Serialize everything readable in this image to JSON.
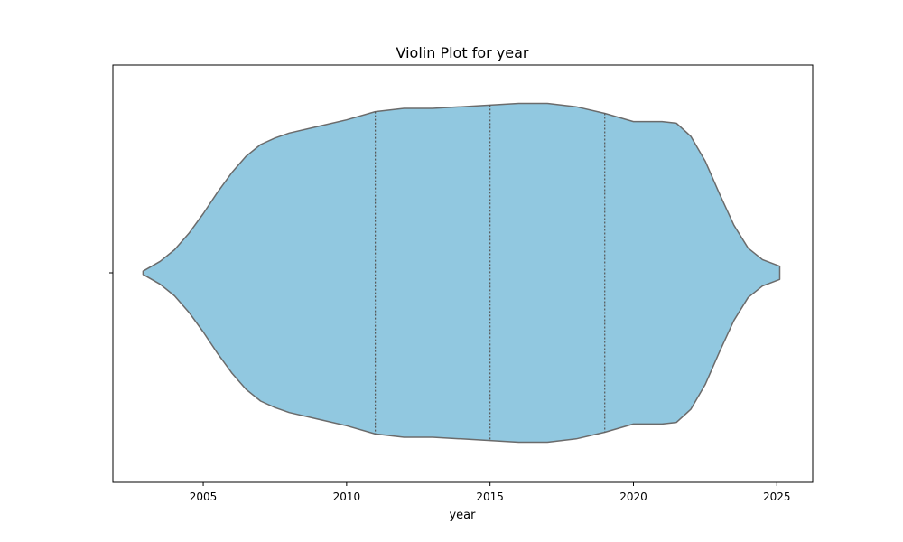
{
  "chart_data": {
    "type": "violin",
    "title": "Violin Plot for year",
    "xlabel": "year",
    "ylabel": "",
    "xlim": [
      2001.85,
      2026.25
    ],
    "x_ticks": [
      2005,
      2010,
      2015,
      2020,
      2025
    ],
    "x_tick_labels": [
      "2005",
      "2010",
      "2015",
      "2020",
      "2025"
    ],
    "y_ticks": [
      ""
    ],
    "grid": false,
    "orientation": "horizontal",
    "fill_color": "#91c8e0",
    "edge_color": "#6b6b6b",
    "quartiles": [
      2011,
      2015,
      2019
    ],
    "density_profile": [
      {
        "x": 2002.9,
        "w": 0.01
      },
      {
        "x": 2003.5,
        "w": 0.07
      },
      {
        "x": 2004.0,
        "w": 0.14
      },
      {
        "x": 2004.5,
        "w": 0.24
      },
      {
        "x": 2005.0,
        "w": 0.36
      },
      {
        "x": 2005.5,
        "w": 0.49
      },
      {
        "x": 2006.0,
        "w": 0.61
      },
      {
        "x": 2006.5,
        "w": 0.71
      },
      {
        "x": 2007.0,
        "w": 0.78
      },
      {
        "x": 2007.5,
        "w": 0.82
      },
      {
        "x": 2008.0,
        "w": 0.85
      },
      {
        "x": 2009.0,
        "w": 0.89
      },
      {
        "x": 2010.0,
        "w": 0.93
      },
      {
        "x": 2011.0,
        "w": 0.98
      },
      {
        "x": 2012.0,
        "w": 1.0
      },
      {
        "x": 2013.0,
        "w": 1.0
      },
      {
        "x": 2014.0,
        "w": 1.01
      },
      {
        "x": 2015.0,
        "w": 1.02
      },
      {
        "x": 2016.0,
        "w": 1.03
      },
      {
        "x": 2017.0,
        "w": 1.03
      },
      {
        "x": 2018.0,
        "w": 1.01
      },
      {
        "x": 2019.0,
        "w": 0.97
      },
      {
        "x": 2020.0,
        "w": 0.92
      },
      {
        "x": 2021.0,
        "w": 0.92
      },
      {
        "x": 2021.5,
        "w": 0.91
      },
      {
        "x": 2022.0,
        "w": 0.83
      },
      {
        "x": 2022.5,
        "w": 0.68
      },
      {
        "x": 2023.0,
        "w": 0.48
      },
      {
        "x": 2023.5,
        "w": 0.29
      },
      {
        "x": 2024.0,
        "w": 0.15
      },
      {
        "x": 2024.5,
        "w": 0.08
      },
      {
        "x": 2025.1,
        "w": 0.04
      }
    ]
  }
}
